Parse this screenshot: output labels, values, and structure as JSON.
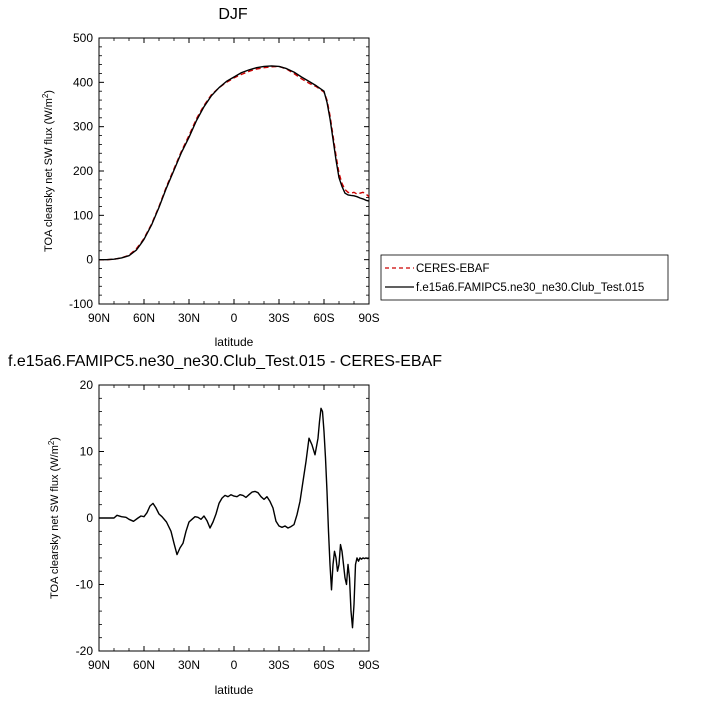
{
  "chart_data": [
    {
      "type": "line",
      "title": "DJF",
      "xlabel": "latitude",
      "ylabel_main": "TOA clearsky net SW flux (W/m",
      "ylabel_sup": "2",
      "ylabel_close": ")",
      "xlim": [
        90,
        -90
      ],
      "ylim": [
        -100,
        500
      ],
      "xticks": [
        {
          "value": 90,
          "label": "90N"
        },
        {
          "value": 60,
          "label": "60N"
        },
        {
          "value": 30,
          "label": "30N"
        },
        {
          "value": 0,
          "label": "0"
        },
        {
          "value": -30,
          "label": "30S"
        },
        {
          "value": -60,
          "label": "60S"
        },
        {
          "value": -90,
          "label": "90S"
        }
      ],
      "yticks": [
        {
          "value": 500,
          "label": "500"
        },
        {
          "value": 400,
          "label": "400"
        },
        {
          "value": 300,
          "label": "300"
        },
        {
          "value": 200,
          "label": "200"
        },
        {
          "value": 100,
          "label": "100"
        },
        {
          "value": 0,
          "label": "0"
        },
        {
          "value": -100,
          "label": "-100"
        }
      ],
      "legend_position": "right",
      "series": [
        {
          "name": "CERES-EBAF",
          "color": "#cc0000",
          "dash": "dashed",
          "x": [
            90,
            85,
            80,
            75,
            70,
            65,
            62,
            60,
            55,
            50,
            45,
            40,
            35,
            30,
            25,
            20,
            15,
            10,
            5,
            0,
            -5,
            -10,
            -15,
            -20,
            -25,
            -30,
            -35,
            -40,
            -45,
            -50,
            -55,
            -60,
            -62,
            -64,
            -66,
            -68,
            -70,
            -72,
            -74,
            -76,
            -78,
            -80,
            -82,
            -84,
            -86,
            -88,
            -90
          ],
          "y": [
            0,
            0,
            1,
            4,
            10,
            25,
            38,
            48,
            80,
            120,
            165,
            205,
            245,
            280,
            318,
            348,
            372,
            388,
            400,
            410,
            418,
            425,
            430,
            433,
            435,
            436,
            430,
            420,
            408,
            398,
            390,
            378,
            360,
            325,
            280,
            235,
            195,
            172,
            158,
            152,
            150,
            152,
            148,
            150,
            152,
            148,
            142
          ]
        },
        {
          "name": "f.e15a6.FAMIPC5.ne30_ne30.Club_Test.015",
          "color": "#000000",
          "dash": "solid",
          "x": [
            90,
            85,
            80,
            75,
            70,
            65,
            62,
            60,
            55,
            50,
            45,
            40,
            35,
            30,
            25,
            20,
            15,
            10,
            5,
            0,
            -5,
            -10,
            -15,
            -20,
            -25,
            -30,
            -35,
            -40,
            -45,
            -50,
            -55,
            -60,
            -62,
            -64,
            -66,
            -68,
            -70,
            -72,
            -74,
            -76,
            -78,
            -80,
            -82,
            -84,
            -86,
            -88,
            -90
          ],
          "y": [
            0,
            0,
            1,
            4,
            9,
            22,
            36,
            46,
            78,
            118,
            162,
            202,
            242,
            276,
            314,
            345,
            370,
            388,
            402,
            412,
            422,
            428,
            433,
            436,
            437,
            436,
            431,
            423,
            412,
            402,
            392,
            380,
            355,
            318,
            272,
            225,
            185,
            165,
            150,
            146,
            145,
            144,
            142,
            139,
            137,
            134,
            132
          ]
        }
      ]
    },
    {
      "type": "line",
      "title": "f.e15a6.FAMIPC5.ne30_ne30.Club_Test.015 - CERES-EBAF",
      "xlabel": "latitude",
      "ylabel_main": "TOA clearsky net SW flux (W/m",
      "ylabel_sup": "2",
      "ylabel_close": ")",
      "xlim": [
        90,
        -90
      ],
      "ylim": [
        -20,
        20
      ],
      "xticks": [
        {
          "value": 90,
          "label": "90N"
        },
        {
          "value": 60,
          "label": "60N"
        },
        {
          "value": 30,
          "label": "30N"
        },
        {
          "value": 0,
          "label": "0"
        },
        {
          "value": -30,
          "label": "30S"
        },
        {
          "value": -60,
          "label": "60S"
        },
        {
          "value": -90,
          "label": "90S"
        }
      ],
      "yticks": [
        {
          "value": 20,
          "label": "20"
        },
        {
          "value": 10,
          "label": "10"
        },
        {
          "value": 0,
          "label": "0"
        },
        {
          "value": -10,
          "label": "-10"
        },
        {
          "value": -20,
          "label": "-20"
        }
      ],
      "series": [
        {
          "color": "#000000",
          "dash": "solid",
          "x": [
            90,
            85,
            80,
            78,
            75,
            72,
            70,
            67,
            64,
            62,
            60,
            58,
            56,
            54,
            52,
            50,
            48,
            45,
            42,
            40,
            38,
            36,
            34,
            32,
            30,
            28,
            26,
            24,
            22,
            20,
            18,
            16,
            14,
            12,
            10,
            8,
            6,
            4,
            2,
            0,
            -2,
            -4,
            -6,
            -8,
            -10,
            -12,
            -14,
            -16,
            -18,
            -20,
            -22,
            -24,
            -26,
            -28,
            -30,
            -32,
            -34,
            -36,
            -38,
            -40,
            -42,
            -44,
            -46,
            -48,
            -50,
            -52,
            -54,
            -56,
            -57,
            -58,
            -59,
            -60,
            -61,
            -62,
            -63,
            -64,
            -65,
            -66,
            -67,
            -68,
            -69,
            -70,
            -71,
            -72,
            -73,
            -74,
            -75,
            -76,
            -77,
            -78,
            -79,
            -80,
            -81,
            -82,
            -83,
            -84,
            -85,
            -86,
            -87,
            -88,
            -89,
            -90
          ],
          "y": [
            0,
            0,
            0,
            0.4,
            0.2,
            0.1,
            -0.2,
            -0.5,
            0,
            0.3,
            0.2,
            0.8,
            1.8,
            2.2,
            1.5,
            0.6,
            0.2,
            -0.6,
            -2.0,
            -3.8,
            -5.5,
            -4.5,
            -3.8,
            -2.0,
            -0.6,
            -0.2,
            0.2,
            0.1,
            -0.2,
            0.3,
            -0.4,
            -1.5,
            -0.6,
            0.6,
            2.2,
            3.0,
            3.4,
            3.2,
            3.5,
            3.3,
            3.2,
            3.5,
            3.4,
            3.1,
            3.5,
            3.9,
            4.0,
            3.8,
            3.2,
            2.8,
            3.2,
            2.5,
            1.5,
            -0.5,
            -1.2,
            -1.4,
            -1.2,
            -1.5,
            -1.3,
            -1.0,
            0.5,
            2.5,
            5.5,
            8.5,
            12.0,
            11.0,
            9.5,
            12.0,
            14.5,
            16.5,
            16.0,
            13.0,
            9.0,
            4.0,
            -2.0,
            -7.0,
            -10.8,
            -7.0,
            -5.0,
            -6.0,
            -8.0,
            -7.0,
            -4.0,
            -5.0,
            -7.0,
            -9.0,
            -10.0,
            -7.0,
            -9.0,
            -14.0,
            -16.5,
            -13.0,
            -7.0,
            -6.0,
            -6.5,
            -6.0,
            -6.2,
            -6.0,
            -6.1,
            -6.0,
            -6.1,
            -6.0
          ]
        }
      ]
    }
  ],
  "legend": {
    "entries": [
      {
        "label": "CERES-EBAF",
        "color": "#cc0000",
        "dash": "dashed"
      },
      {
        "label": "f.e15a6.FAMIPC5.ne30_ne30.Club_Test.015",
        "color": "#000000",
        "dash": "solid"
      }
    ]
  }
}
